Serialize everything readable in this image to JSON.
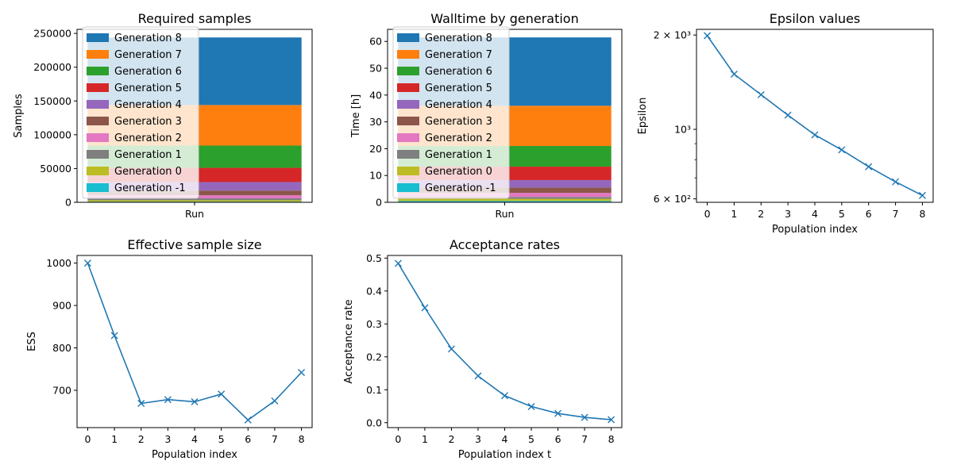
{
  "chart_data": [
    {
      "id": "required_samples",
      "type": "bar",
      "stacked": true,
      "title": "Required samples",
      "xlabel": "",
      "ylabel": "Samples",
      "categories": [
        "Run"
      ],
      "ylim": [
        0,
        256000
      ],
      "yticks": [
        0,
        50000,
        100000,
        150000,
        200000,
        250000
      ],
      "ytick_labels": [
        "0",
        "50000",
        "100000",
        "150000",
        "200000",
        "250000"
      ],
      "legend_position": "upper-left",
      "series": [
        {
          "name": "Generation -1",
          "values": [
            1000
          ],
          "color": "#17becf"
        },
        {
          "name": "Generation 0",
          "values": [
            2100
          ],
          "color": "#bcbd22"
        },
        {
          "name": "Generation 1",
          "values": [
            2800
          ],
          "color": "#7f7f7f"
        },
        {
          "name": "Generation 2",
          "values": [
            4500
          ],
          "color": "#e377c2"
        },
        {
          "name": "Generation 3",
          "values": [
            7000
          ],
          "color": "#8c564b"
        },
        {
          "name": "Generation 4",
          "values": [
            12600
          ],
          "color": "#9467bd"
        },
        {
          "name": "Generation 5",
          "values": [
            21000
          ],
          "color": "#d62728"
        },
        {
          "name": "Generation 6",
          "values": [
            33000
          ],
          "color": "#2ca02c"
        },
        {
          "name": "Generation 7",
          "values": [
            60000
          ],
          "color": "#ff7f0e"
        },
        {
          "name": "Generation 8",
          "values": [
            100000
          ],
          "color": "#1f77b4"
        }
      ]
    },
    {
      "id": "walltime",
      "type": "bar",
      "stacked": true,
      "title": "Walltime by generation",
      "xlabel": "",
      "ylabel": "Time [h]",
      "categories": [
        "Run"
      ],
      "ylim": [
        0,
        64.5
      ],
      "yticks": [
        0,
        10,
        20,
        30,
        40,
        50,
        60
      ],
      "ytick_labels": [
        "0",
        "10",
        "20",
        "30",
        "40",
        "50",
        "60"
      ],
      "legend_position": "upper-left",
      "series": [
        {
          "name": "Generation -1",
          "values": [
            0.5
          ],
          "color": "#17becf"
        },
        {
          "name": "Generation 0",
          "values": [
            0.8
          ],
          "color": "#bcbd22"
        },
        {
          "name": "Generation 1",
          "values": [
            0.7
          ],
          "color": "#7f7f7f"
        },
        {
          "name": "Generation 2",
          "values": [
            1.5
          ],
          "color": "#e377c2"
        },
        {
          "name": "Generation 3",
          "values": [
            2.0
          ],
          "color": "#8c564b"
        },
        {
          "name": "Generation 4",
          "values": [
            2.8
          ],
          "color": "#9467bd"
        },
        {
          "name": "Generation 5",
          "values": [
            5.0
          ],
          "color": "#d62728"
        },
        {
          "name": "Generation 6",
          "values": [
            7.7
          ],
          "color": "#2ca02c"
        },
        {
          "name": "Generation 7",
          "values": [
            15.0
          ],
          "color": "#ff7f0e"
        },
        {
          "name": "Generation 8",
          "values": [
            25.5
          ],
          "color": "#1f77b4"
        }
      ]
    },
    {
      "id": "epsilon",
      "type": "line",
      "title": "Epsilon values",
      "xlabel": "Population index",
      "ylabel": "Epsilon",
      "yscale": "log",
      "x": [
        0,
        1,
        2,
        3,
        4,
        5,
        6,
        7,
        8
      ],
      "xlim": [
        -0.4,
        8.4
      ],
      "ylim": [
        585,
        2085
      ],
      "yticks_major": [
        600,
        1000,
        2000
      ],
      "ytick_labels": [
        "6 × 10²",
        "10³",
        "2 × 10³"
      ],
      "yticks_minor": [
        700,
        800,
        900
      ],
      "marker": "x",
      "color": "#1f77b4",
      "series": [
        {
          "values": [
            1990,
            1500,
            1290,
            1110,
            960,
            860,
            760,
            680,
            615
          ]
        }
      ]
    },
    {
      "id": "ess",
      "type": "line",
      "title": "Effective sample size",
      "xlabel": "Population index",
      "ylabel": "ESS",
      "x": [
        0,
        1,
        2,
        3,
        4,
        5,
        6,
        7,
        8
      ],
      "xlim": [
        -0.4,
        8.4
      ],
      "ylim": [
        612,
        1018
      ],
      "yticks": [
        700,
        800,
        900,
        1000
      ],
      "marker": "x",
      "color": "#1f77b4",
      "series": [
        {
          "values": [
            1000,
            829,
            669,
            678,
            673,
            691,
            630,
            675,
            742
          ]
        }
      ]
    },
    {
      "id": "acceptance",
      "type": "line",
      "title": "Acceptance rates",
      "xlabel": "Population index t",
      "ylabel": "Acceptance rate",
      "x": [
        0,
        1,
        2,
        3,
        4,
        5,
        6,
        7,
        8
      ],
      "xlim": [
        -0.4,
        8.4
      ],
      "ylim": [
        -0.015,
        0.508
      ],
      "yticks": [
        0.0,
        0.1,
        0.2,
        0.3,
        0.4,
        0.5
      ],
      "ytick_labels": [
        "0.0",
        "0.1",
        "0.2",
        "0.3",
        "0.4",
        "0.5"
      ],
      "marker": "x",
      "color": "#1f77b4",
      "series": [
        {
          "values": [
            0.484,
            0.349,
            0.224,
            0.142,
            0.082,
            0.049,
            0.028,
            0.016,
            0.009
          ]
        }
      ]
    }
  ]
}
